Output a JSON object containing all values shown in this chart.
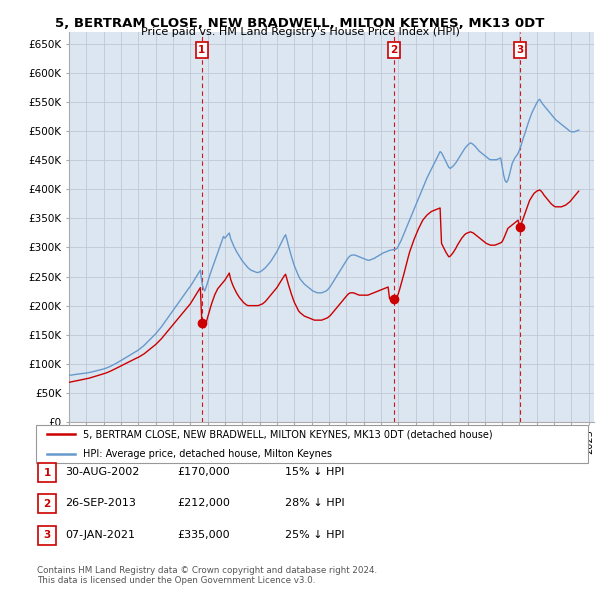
{
  "title": "5, BERTRAM CLOSE, NEW BRADWELL, MILTON KEYNES, MK13 0DT",
  "subtitle": "Price paid vs. HM Land Registry's House Price Index (HPI)",
  "ylabel_ticks": [
    "£0",
    "£50K",
    "£100K",
    "£150K",
    "£200K",
    "£250K",
    "£300K",
    "£350K",
    "£400K",
    "£450K",
    "£500K",
    "£550K",
    "£600K",
    "£650K"
  ],
  "ytick_values": [
    0,
    50000,
    100000,
    150000,
    200000,
    250000,
    300000,
    350000,
    400000,
    450000,
    500000,
    550000,
    600000,
    650000
  ],
  "ylim": [
    0,
    670000
  ],
  "xlim_start": 1995.0,
  "xlim_end": 2025.3,
  "sale1": {
    "date_x": 2002.667,
    "price": 170000,
    "label": "1",
    "date_str": "30-AUG-2002",
    "price_str": "£170,000",
    "pct_str": "15% ↓ HPI"
  },
  "sale2": {
    "date_x": 2013.75,
    "price": 212000,
    "label": "2",
    "date_str": "26-SEP-2013",
    "price_str": "£212,000",
    "pct_str": "28% ↓ HPI"
  },
  "sale3": {
    "date_x": 2021.03,
    "price": 335000,
    "label": "3",
    "date_str": "07-JAN-2021",
    "price_str": "£335,000",
    "pct_str": "25% ↓ HPI"
  },
  "house_color": "#cc0000",
  "hpi_color": "#6699cc",
  "bg_color": "#dce6f1",
  "grid_color": "#c0c8d8",
  "legend_label_house": "5, BERTRAM CLOSE, NEW BRADWELL, MILTON KEYNES, MK13 0DT (detached house)",
  "legend_label_hpi": "HPI: Average price, detached house, Milton Keynes",
  "footer": "Contains HM Land Registry data © Crown copyright and database right 2024.\nThis data is licensed under the Open Government Licence v3.0.",
  "hpi_data_years": [
    1995.0,
    1995.083,
    1995.167,
    1995.25,
    1995.333,
    1995.417,
    1995.5,
    1995.583,
    1995.667,
    1995.75,
    1995.833,
    1995.917,
    1996.0,
    1996.083,
    1996.167,
    1996.25,
    1996.333,
    1996.417,
    1996.5,
    1996.583,
    1996.667,
    1996.75,
    1996.833,
    1996.917,
    1997.0,
    1997.083,
    1997.167,
    1997.25,
    1997.333,
    1997.417,
    1997.5,
    1997.583,
    1997.667,
    1997.75,
    1997.833,
    1997.917,
    1998.0,
    1998.083,
    1998.167,
    1998.25,
    1998.333,
    1998.417,
    1998.5,
    1998.583,
    1998.667,
    1998.75,
    1998.833,
    1998.917,
    1999.0,
    1999.083,
    1999.167,
    1999.25,
    1999.333,
    1999.417,
    1999.5,
    1999.583,
    1999.667,
    1999.75,
    1999.833,
    1999.917,
    2000.0,
    2000.083,
    2000.167,
    2000.25,
    2000.333,
    2000.417,
    2000.5,
    2000.583,
    2000.667,
    2000.75,
    2000.833,
    2000.917,
    2001.0,
    2001.083,
    2001.167,
    2001.25,
    2001.333,
    2001.417,
    2001.5,
    2001.583,
    2001.667,
    2001.75,
    2001.833,
    2001.917,
    2002.0,
    2002.083,
    2002.167,
    2002.25,
    2002.333,
    2002.417,
    2002.5,
    2002.583,
    2002.667,
    2002.75,
    2002.833,
    2002.917,
    2003.0,
    2003.083,
    2003.167,
    2003.25,
    2003.333,
    2003.417,
    2003.5,
    2003.583,
    2003.667,
    2003.75,
    2003.833,
    2003.917,
    2004.0,
    2004.083,
    2004.167,
    2004.25,
    2004.333,
    2004.417,
    2004.5,
    2004.583,
    2004.667,
    2004.75,
    2004.833,
    2004.917,
    2005.0,
    2005.083,
    2005.167,
    2005.25,
    2005.333,
    2005.417,
    2005.5,
    2005.583,
    2005.667,
    2005.75,
    2005.833,
    2005.917,
    2006.0,
    2006.083,
    2006.167,
    2006.25,
    2006.333,
    2006.417,
    2006.5,
    2006.583,
    2006.667,
    2006.75,
    2006.833,
    2006.917,
    2007.0,
    2007.083,
    2007.167,
    2007.25,
    2007.333,
    2007.417,
    2007.5,
    2007.583,
    2007.667,
    2007.75,
    2007.833,
    2007.917,
    2008.0,
    2008.083,
    2008.167,
    2008.25,
    2008.333,
    2008.417,
    2008.5,
    2008.583,
    2008.667,
    2008.75,
    2008.833,
    2008.917,
    2009.0,
    2009.083,
    2009.167,
    2009.25,
    2009.333,
    2009.417,
    2009.5,
    2009.583,
    2009.667,
    2009.75,
    2009.833,
    2009.917,
    2010.0,
    2010.083,
    2010.167,
    2010.25,
    2010.333,
    2010.417,
    2010.5,
    2010.583,
    2010.667,
    2010.75,
    2010.833,
    2010.917,
    2011.0,
    2011.083,
    2011.167,
    2011.25,
    2011.333,
    2011.417,
    2011.5,
    2011.583,
    2011.667,
    2011.75,
    2011.833,
    2011.917,
    2012.0,
    2012.083,
    2012.167,
    2012.25,
    2012.333,
    2012.417,
    2012.5,
    2012.583,
    2012.667,
    2012.75,
    2012.833,
    2012.917,
    2013.0,
    2013.083,
    2013.167,
    2013.25,
    2013.333,
    2013.417,
    2013.5,
    2013.583,
    2013.667,
    2013.75,
    2013.833,
    2013.917,
    2014.0,
    2014.083,
    2014.167,
    2014.25,
    2014.333,
    2014.417,
    2014.5,
    2014.583,
    2014.667,
    2014.75,
    2014.833,
    2014.917,
    2015.0,
    2015.083,
    2015.167,
    2015.25,
    2015.333,
    2015.417,
    2015.5,
    2015.583,
    2015.667,
    2015.75,
    2015.833,
    2015.917,
    2016.0,
    2016.083,
    2016.167,
    2016.25,
    2016.333,
    2016.417,
    2016.5,
    2016.583,
    2016.667,
    2016.75,
    2016.833,
    2016.917,
    2017.0,
    2017.083,
    2017.167,
    2017.25,
    2017.333,
    2017.417,
    2017.5,
    2017.583,
    2017.667,
    2017.75,
    2017.833,
    2017.917,
    2018.0,
    2018.083,
    2018.167,
    2018.25,
    2018.333,
    2018.417,
    2018.5,
    2018.583,
    2018.667,
    2018.75,
    2018.833,
    2018.917,
    2019.0,
    2019.083,
    2019.167,
    2019.25,
    2019.333,
    2019.417,
    2019.5,
    2019.583,
    2019.667,
    2019.75,
    2019.833,
    2019.917,
    2020.0,
    2020.083,
    2020.167,
    2020.25,
    2020.333,
    2020.417,
    2020.5,
    2020.583,
    2020.667,
    2020.75,
    2020.833,
    2020.917,
    2021.0,
    2021.083,
    2021.167,
    2021.25,
    2021.333,
    2021.417,
    2021.5,
    2021.583,
    2021.667,
    2021.75,
    2021.833,
    2021.917,
    2022.0,
    2022.083,
    2022.167,
    2022.25,
    2022.333,
    2022.417,
    2022.5,
    2022.583,
    2022.667,
    2022.75,
    2022.833,
    2022.917,
    2023.0,
    2023.083,
    2023.167,
    2023.25,
    2023.333,
    2023.417,
    2023.5,
    2023.583,
    2023.667,
    2023.75,
    2023.833,
    2023.917,
    2024.0,
    2024.083,
    2024.167,
    2024.25,
    2024.333,
    2024.417
  ],
  "hpi_data_values": [
    80000,
    80300,
    80600,
    81000,
    81400,
    81800,
    82100,
    82400,
    82700,
    83000,
    83300,
    83700,
    84000,
    84400,
    84900,
    85400,
    86000,
    86700,
    87300,
    87900,
    88500,
    89100,
    89700,
    90300,
    91000,
    91800,
    92700,
    93700,
    94800,
    96000,
    97200,
    98500,
    99800,
    101200,
    102600,
    104000,
    105500,
    107000,
    108500,
    110000,
    111500,
    113000,
    114500,
    116000,
    117500,
    119000,
    120500,
    122000,
    123500,
    125500,
    127500,
    129500,
    131500,
    134000,
    136500,
    139000,
    141500,
    144000,
    146500,
    149000,
    151500,
    154500,
    157500,
    160500,
    163500,
    167000,
    170500,
    174000,
    177500,
    181000,
    184500,
    188000,
    191500,
    195000,
    198500,
    202000,
    205500,
    209000,
    212500,
    216000,
    219500,
    223000,
    226500,
    230000,
    233000,
    237000,
    241000,
    245000,
    249000,
    253000,
    257000,
    261000,
    240000,
    230000,
    225000,
    232000,
    240000,
    248000,
    256000,
    263000,
    270000,
    277000,
    284000,
    291000,
    298000,
    305000,
    312000,
    319000,
    316000,
    319000,
    322000,
    325000,
    315000,
    309000,
    303000,
    298000,
    293000,
    289000,
    285000,
    281000,
    277000,
    274000,
    271000,
    268000,
    265000,
    263000,
    261000,
    260000,
    259000,
    258000,
    257000,
    257000,
    258000,
    259000,
    261000,
    263000,
    265000,
    268000,
    271000,
    274000,
    277000,
    281000,
    285000,
    289000,
    293000,
    298000,
    303000,
    308000,
    313000,
    318000,
    322000,
    313000,
    303000,
    294000,
    285000,
    277000,
    269000,
    263000,
    257000,
    251000,
    246000,
    243000,
    240000,
    237000,
    235000,
    233000,
    231000,
    229000,
    227000,
    225000,
    224000,
    223000,
    222000,
    222000,
    222000,
    222000,
    223000,
    224000,
    225000,
    227000,
    230000,
    233000,
    237000,
    241000,
    245000,
    249000,
    253000,
    257000,
    261000,
    265000,
    269000,
    273000,
    277000,
    281000,
    284000,
    286000,
    287000,
    287000,
    287000,
    286000,
    285000,
    284000,
    283000,
    282000,
    281000,
    280000,
    279000,
    278000,
    278000,
    279000,
    280000,
    281000,
    282000,
    284000,
    285000,
    287000,
    288000,
    290000,
    291000,
    292000,
    293000,
    294000,
    295000,
    295500,
    296000,
    296500,
    297000,
    298000,
    302000,
    307000,
    312000,
    318000,
    324000,
    330000,
    336000,
    342000,
    348000,
    354000,
    360000,
    366000,
    372000,
    378000,
    384000,
    390000,
    396000,
    402000,
    408000,
    414000,
    420000,
    425000,
    430000,
    435000,
    440000,
    445000,
    450000,
    455000,
    460000,
    465000,
    463000,
    458000,
    453000,
    448000,
    443000,
    438000,
    436000,
    438000,
    440000,
    443000,
    446000,
    450000,
    454000,
    458000,
    462000,
    466000,
    470000,
    473000,
    476000,
    478000,
    480000,
    479000,
    477000,
    475000,
    472000,
    469000,
    466000,
    464000,
    462000,
    460000,
    458000,
    456000,
    454000,
    452000,
    451000,
    451000,
    451000,
    451000,
    451000,
    452000,
    453000,
    454000,
    440000,
    425000,
    415000,
    412000,
    416000,
    425000,
    435000,
    445000,
    450000,
    455000,
    458000,
    462000,
    468000,
    475000,
    483000,
    491000,
    498000,
    506000,
    514000,
    521000,
    528000,
    534000,
    539000,
    544000,
    549000,
    553000,
    555000,
    551000,
    547000,
    544000,
    541000,
    538000,
    535000,
    532000,
    529000,
    526000,
    523000,
    520000,
    518000,
    516000,
    514000,
    512000,
    510000,
    508000,
    506000,
    504000,
    502000,
    500000,
    499000,
    499000,
    499000,
    500000,
    501000,
    502000
  ],
  "house_data_years": [
    1995.0,
    1995.083,
    1995.167,
    1995.25,
    1995.333,
    1995.417,
    1995.5,
    1995.583,
    1995.667,
    1995.75,
    1995.833,
    1995.917,
    1996.0,
    1996.083,
    1996.167,
    1996.25,
    1996.333,
    1996.417,
    1996.5,
    1996.583,
    1996.667,
    1996.75,
    1996.833,
    1996.917,
    1997.0,
    1997.083,
    1997.167,
    1997.25,
    1997.333,
    1997.417,
    1997.5,
    1997.583,
    1997.667,
    1997.75,
    1997.833,
    1997.917,
    1998.0,
    1998.083,
    1998.167,
    1998.25,
    1998.333,
    1998.417,
    1998.5,
    1998.583,
    1998.667,
    1998.75,
    1998.833,
    1998.917,
    1999.0,
    1999.083,
    1999.167,
    1999.25,
    1999.333,
    1999.417,
    1999.5,
    1999.583,
    1999.667,
    1999.75,
    1999.833,
    1999.917,
    2000.0,
    2000.083,
    2000.167,
    2000.25,
    2000.333,
    2000.417,
    2000.5,
    2000.583,
    2000.667,
    2000.75,
    2000.833,
    2000.917,
    2001.0,
    2001.083,
    2001.167,
    2001.25,
    2001.333,
    2001.417,
    2001.5,
    2001.583,
    2001.667,
    2001.75,
    2001.833,
    2001.917,
    2002.0,
    2002.083,
    2002.167,
    2002.25,
    2002.333,
    2002.417,
    2002.5,
    2002.583,
    2002.667,
    2002.75,
    2002.833,
    2002.917,
    2003.0,
    2003.083,
    2003.167,
    2003.25,
    2003.333,
    2003.417,
    2003.5,
    2003.583,
    2003.667,
    2003.75,
    2003.833,
    2003.917,
    2004.0,
    2004.083,
    2004.167,
    2004.25,
    2004.333,
    2004.417,
    2004.5,
    2004.583,
    2004.667,
    2004.75,
    2004.833,
    2004.917,
    2005.0,
    2005.083,
    2005.167,
    2005.25,
    2005.333,
    2005.417,
    2005.5,
    2005.583,
    2005.667,
    2005.75,
    2005.833,
    2005.917,
    2006.0,
    2006.083,
    2006.167,
    2006.25,
    2006.333,
    2006.417,
    2006.5,
    2006.583,
    2006.667,
    2006.75,
    2006.833,
    2006.917,
    2007.0,
    2007.083,
    2007.167,
    2007.25,
    2007.333,
    2007.417,
    2007.5,
    2007.583,
    2007.667,
    2007.75,
    2007.833,
    2007.917,
    2008.0,
    2008.083,
    2008.167,
    2008.25,
    2008.333,
    2008.417,
    2008.5,
    2008.583,
    2008.667,
    2008.75,
    2008.833,
    2008.917,
    2009.0,
    2009.083,
    2009.167,
    2009.25,
    2009.333,
    2009.417,
    2009.5,
    2009.583,
    2009.667,
    2009.75,
    2009.833,
    2009.917,
    2010.0,
    2010.083,
    2010.167,
    2010.25,
    2010.333,
    2010.417,
    2010.5,
    2010.583,
    2010.667,
    2010.75,
    2010.833,
    2010.917,
    2011.0,
    2011.083,
    2011.167,
    2011.25,
    2011.333,
    2011.417,
    2011.5,
    2011.583,
    2011.667,
    2011.75,
    2011.833,
    2011.917,
    2012.0,
    2012.083,
    2012.167,
    2012.25,
    2012.333,
    2012.417,
    2012.5,
    2012.583,
    2012.667,
    2012.75,
    2012.833,
    2012.917,
    2013.0,
    2013.083,
    2013.167,
    2013.25,
    2013.333,
    2013.417,
    2013.5,
    2013.583,
    2013.667,
    2013.75,
    2013.833,
    2013.917,
    2014.0,
    2014.083,
    2014.167,
    2014.25,
    2014.333,
    2014.417,
    2014.5,
    2014.583,
    2014.667,
    2014.75,
    2014.833,
    2014.917,
    2015.0,
    2015.083,
    2015.167,
    2015.25,
    2015.333,
    2015.417,
    2015.5,
    2015.583,
    2015.667,
    2015.75,
    2015.833,
    2015.917,
    2016.0,
    2016.083,
    2016.167,
    2016.25,
    2016.333,
    2016.417,
    2016.5,
    2016.583,
    2016.667,
    2016.75,
    2016.833,
    2016.917,
    2017.0,
    2017.083,
    2017.167,
    2017.25,
    2017.333,
    2017.417,
    2017.5,
    2017.583,
    2017.667,
    2017.75,
    2017.833,
    2017.917,
    2018.0,
    2018.083,
    2018.167,
    2018.25,
    2018.333,
    2018.417,
    2018.5,
    2018.583,
    2018.667,
    2018.75,
    2018.833,
    2018.917,
    2019.0,
    2019.083,
    2019.167,
    2019.25,
    2019.333,
    2019.417,
    2019.5,
    2019.583,
    2019.667,
    2019.75,
    2019.833,
    2019.917,
    2020.0,
    2020.083,
    2020.167,
    2020.25,
    2020.333,
    2020.417,
    2020.5,
    2020.583,
    2020.667,
    2020.75,
    2020.833,
    2020.917,
    2021.0,
    2021.083,
    2021.167,
    2021.25,
    2021.333,
    2021.417,
    2021.5,
    2021.583,
    2021.667,
    2021.75,
    2021.833,
    2021.917,
    2022.0,
    2022.083,
    2022.167,
    2022.25,
    2022.333,
    2022.417,
    2022.5,
    2022.583,
    2022.667,
    2022.75,
    2022.833,
    2022.917,
    2023.0,
    2023.083,
    2023.167,
    2023.25,
    2023.333,
    2023.417,
    2023.5,
    2023.583,
    2023.667,
    2023.75,
    2023.833,
    2023.917,
    2024.0,
    2024.083,
    2024.167,
    2024.25,
    2024.333,
    2024.417
  ],
  "house_data_values": [
    68000,
    68500,
    69000,
    69500,
    70000,
    70500,
    71000,
    71500,
    72000,
    72500,
    73000,
    73500,
    74000,
    74500,
    75200,
    76000,
    76800,
    77500,
    78200,
    79000,
    79800,
    80500,
    81200,
    82000,
    82700,
    83500,
    84400,
    85400,
    86500,
    87600,
    88800,
    90000,
    91200,
    92500,
    93800,
    95000,
    96300,
    97500,
    98800,
    100000,
    101300,
    102500,
    103800,
    105000,
    106300,
    107500,
    108800,
    110000,
    111000,
    112500,
    114000,
    115500,
    117000,
    119000,
    121000,
    123000,
    125000,
    127000,
    129000,
    131000,
    133000,
    135500,
    138000,
    140500,
    143000,
    146000,
    149000,
    152000,
    155000,
    158000,
    161000,
    164000,
    167000,
    170000,
    173000,
    176000,
    179000,
    182000,
    185000,
    188000,
    191000,
    194000,
    197000,
    200000,
    203000,
    207000,
    211000,
    215000,
    219000,
    223000,
    227000,
    231000,
    170000,
    165000,
    162000,
    170000,
    180000,
    188000,
    197000,
    205000,
    212000,
    219000,
    224000,
    229000,
    232000,
    235000,
    238000,
    241000,
    244000,
    248000,
    252000,
    256000,
    245000,
    238000,
    232000,
    227000,
    222000,
    218000,
    214000,
    211000,
    208000,
    205000,
    203000,
    201000,
    200000,
    200000,
    200000,
    200000,
    200000,
    200000,
    200000,
    200000,
    201000,
    202000,
    203000,
    205000,
    207000,
    210000,
    213000,
    216000,
    219000,
    222000,
    225000,
    228000,
    231000,
    235000,
    239000,
    243000,
    247000,
    251000,
    254000,
    245000,
    236000,
    228000,
    220000,
    213000,
    206000,
    201000,
    196000,
    191000,
    188000,
    186000,
    184000,
    182000,
    181000,
    180000,
    179000,
    178000,
    177000,
    176000,
    175000,
    175000,
    175000,
    175000,
    175000,
    175000,
    176000,
    177000,
    178000,
    179000,
    181000,
    183000,
    186000,
    189000,
    192000,
    195000,
    198000,
    201000,
    204000,
    207000,
    210000,
    213000,
    216000,
    219000,
    221000,
    222000,
    222000,
    222000,
    221000,
    220000,
    219000,
    218000,
    218000,
    218000,
    218000,
    218000,
    218000,
    218000,
    219000,
    220000,
    221000,
    222000,
    223000,
    224000,
    225000,
    226000,
    227000,
    228000,
    229000,
    230000,
    231000,
    232000,
    212000,
    211000,
    212000,
    213000,
    214000,
    215000,
    220000,
    228000,
    237000,
    246000,
    255000,
    265000,
    275000,
    284000,
    293000,
    300000,
    307000,
    314000,
    320000,
    326000,
    332000,
    337000,
    342000,
    347000,
    350000,
    353000,
    356000,
    358000,
    360000,
    362000,
    363000,
    364000,
    365000,
    366000,
    367000,
    368000,
    307000,
    302000,
    297000,
    292000,
    288000,
    284000,
    285000,
    288000,
    291000,
    295000,
    299000,
    304000,
    308000,
    312000,
    316000,
    319000,
    322000,
    324000,
    325000,
    326000,
    327000,
    326000,
    325000,
    323000,
    321000,
    319000,
    317000,
    315000,
    313000,
    311000,
    309000,
    307000,
    306000,
    305000,
    304000,
    304000,
    304000,
    304000,
    305000,
    306000,
    307000,
    308000,
    310000,
    315000,
    321000,
    327000,
    333000,
    335000,
    337000,
    339000,
    341000,
    343000,
    345000,
    347000,
    335000,
    340000,
    346000,
    353000,
    360000,
    367000,
    374000,
    381000,
    385000,
    389000,
    393000,
    395000,
    397000,
    398000,
    399000,
    397000,
    394000,
    390000,
    387000,
    384000,
    381000,
    378000,
    375000,
    373000,
    371000,
    370000,
    370000,
    370000,
    370000,
    370000,
    371000,
    372000,
    373000,
    375000,
    377000,
    379000,
    382000,
    385000,
    388000,
    391000,
    394000,
    397000
  ]
}
